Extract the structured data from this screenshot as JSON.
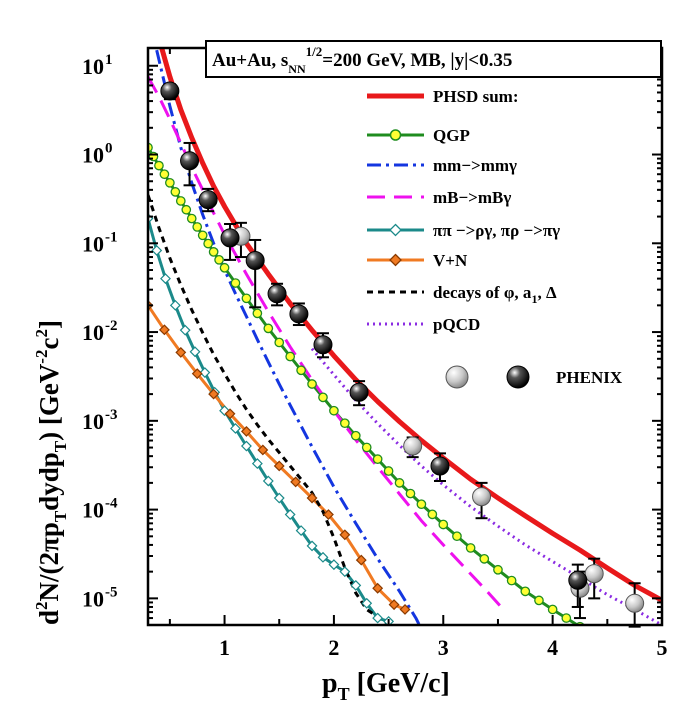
{
  "chart_data": {
    "type": "line",
    "title_box": {
      "system": "Au+Au, s",
      "sub": "NN",
      "sup": "1/2",
      "rest": "=200 GeV, MB, |y|<0.35"
    },
    "xlabel": {
      "main": "p",
      "sub": "T",
      "rest": " [GeV/c]"
    },
    "ylabel_parts": [
      "d",
      "2",
      "N/(2πp",
      "T",
      "dydp",
      "T",
      ")  [GeV",
      "-2",
      "c",
      "2",
      "]"
    ],
    "xlim": [
      0.3,
      5.0
    ],
    "ylim_log10": [
      -5.3,
      1.2
    ],
    "log_y": true,
    "x_ticks": [
      1,
      2,
      3,
      4,
      5
    ],
    "y_ticks": [
      {
        "base": "10",
        "exp": "1"
      },
      {
        "base": "10",
        "exp": "0"
      },
      {
        "base": "10",
        "exp": "-1"
      },
      {
        "base": "10",
        "exp": "-2"
      },
      {
        "base": "10",
        "exp": "-3"
      },
      {
        "base": "10",
        "exp": "-4"
      },
      {
        "base": "10",
        "exp": "-5"
      }
    ],
    "y_tick_values": [
      10,
      1,
      0.1,
      0.01,
      0.001,
      0.0001,
      1e-05
    ],
    "legend_position": "top-right",
    "series": [
      {
        "name": "PHSD sum:",
        "color": "#e8191b",
        "style": "solid",
        "width": 5,
        "marker": "none",
        "x": [
          0.38,
          0.5,
          0.6,
          0.7,
          0.8,
          0.9,
          1.0,
          1.2,
          1.4,
          1.6,
          1.8,
          2.0,
          2.2,
          2.4,
          2.6,
          2.8,
          3.0,
          3.25,
          3.5,
          3.75,
          4.0,
          4.25,
          4.5,
          4.75,
          5.0
        ],
        "y": [
          25,
          7.5,
          3.2,
          1.55,
          0.8,
          0.44,
          0.26,
          0.1,
          0.045,
          0.021,
          0.0105,
          0.0054,
          0.0029,
          0.00165,
          0.00098,
          0.0006,
          0.00038,
          0.00022,
          0.000135,
          8.5e-05,
          5.4e-05,
          3.5e-05,
          2.2e-05,
          1.4e-05,
          9.5e-06
        ]
      },
      {
        "name": "QGP",
        "color": "#1f8c1f",
        "style": "solid",
        "width": 3,
        "marker": "circle",
        "marker_fill": "#ffff33",
        "x": [
          0.3,
          0.4,
          0.5,
          0.6,
          0.7,
          0.8,
          0.9,
          1.0,
          1.2,
          1.4,
          1.6,
          1.8,
          2.0,
          2.2,
          2.4,
          2.6,
          2.8,
          3.0,
          3.25,
          3.5,
          3.75,
          4.0,
          4.25,
          4.5,
          4.75
        ],
        "y": [
          1.2,
          0.75,
          0.48,
          0.3,
          0.19,
          0.123,
          0.08,
          0.053,
          0.024,
          0.011,
          0.0053,
          0.0026,
          0.0013,
          0.00068,
          0.00037,
          0.0002,
          0.000115,
          6.8e-05,
          3.7e-05,
          2.1e-05,
          1.2e-05,
          7.5e-06,
          4.8e-06,
          3.1e-06,
          2.1e-06
        ]
      },
      {
        "name": "mm−>mmγ",
        "color": "#1436e0",
        "style": "dashdot",
        "width": 3,
        "marker": "none",
        "x": [
          0.38,
          0.5,
          0.6,
          0.7,
          0.8,
          0.9,
          1.0,
          1.1,
          1.2,
          1.3,
          1.4,
          1.5,
          1.6,
          1.8,
          2.0,
          2.2,
          2.4,
          2.6,
          2.75,
          2.8
        ],
        "y": [
          15,
          3.5,
          1.2,
          0.48,
          0.21,
          0.1,
          0.05,
          0.027,
          0.015,
          0.0082,
          0.0046,
          0.0026,
          0.0015,
          0.00051,
          0.00018,
          7e-05,
          2.8e-05,
          1.2e-05,
          6e-06,
          4.5e-06
        ]
      },
      {
        "name": "mB−>mBγ",
        "color": "#ee11ee",
        "style": "dash",
        "width": 3,
        "marker": "none",
        "x": [
          0.3,
          0.4,
          0.5,
          0.6,
          0.7,
          0.8,
          0.9,
          1.0,
          1.2,
          1.4,
          1.6,
          1.8,
          2.0,
          2.2,
          2.4,
          2.6,
          2.8,
          3.0,
          3.2,
          3.4,
          3.55
        ],
        "y": [
          7.5,
          4.5,
          2.5,
          1.35,
          0.72,
          0.4,
          0.22,
          0.125,
          0.045,
          0.017,
          0.0068,
          0.0029,
          0.0013,
          0.00061,
          0.0003,
          0.00015,
          7.5e-05,
          4e-05,
          2.2e-05,
          1.2e-05,
          7.5e-06
        ]
      },
      {
        "name": "ππ −>ργ, πρ −>πγ",
        "color": "#1b8a8a",
        "style": "solid",
        "width": 3,
        "marker": "diamond-open",
        "x": [
          0.3,
          0.38,
          0.46,
          0.55,
          0.64,
          0.73,
          0.82,
          0.91,
          1.0,
          1.1,
          1.2,
          1.3,
          1.4,
          1.5,
          1.6,
          1.7,
          1.8,
          1.9,
          2.0,
          2.1,
          2.2,
          2.3,
          2.4,
          2.5
        ],
        "y": [
          0.19,
          0.083,
          0.04,
          0.02,
          0.0105,
          0.006,
          0.0035,
          0.0021,
          0.0013,
          0.00082,
          0.00052,
          0.00033,
          0.00021,
          0.000135,
          8.8e-05,
          5.8e-05,
          3.9e-05,
          2.9e-05,
          2.4e-05,
          2e-05,
          1.4e-05,
          8.8e-06,
          6e-06,
          5.5e-06
        ]
      },
      {
        "name": "V+N",
        "color": "#f07a22",
        "style": "solid",
        "width": 3,
        "marker": "diamond",
        "x": [
          0.3,
          0.45,
          0.6,
          0.75,
          0.9,
          1.05,
          1.2,
          1.35,
          1.5,
          1.65,
          1.8,
          1.95,
          2.1,
          2.25,
          2.4,
          2.55,
          2.65
        ],
        "y": [
          0.02,
          0.0106,
          0.0059,
          0.0034,
          0.002,
          0.0012,
          0.00076,
          0.00047,
          0.00031,
          0.000205,
          0.000135,
          8.8e-05,
          5.2e-05,
          2.7e-05,
          1.3e-05,
          8.5e-06,
          7.5e-06
        ]
      },
      {
        "name": "decays of φ, a",
        "name_sub": "1",
        "name_rest": ", Δ",
        "color": "#000000",
        "style": "shortdash",
        "width": 3,
        "marker": "none",
        "x": [
          0.3,
          0.4,
          0.5,
          0.6,
          0.7,
          0.8,
          0.9,
          1.0,
          1.1,
          1.2,
          1.3,
          1.4,
          1.5,
          1.6,
          1.7,
          1.8,
          1.9,
          2.0,
          2.1,
          2.2,
          2.3,
          2.4,
          2.5
        ],
        "y": [
          0.35,
          0.15,
          0.068,
          0.034,
          0.0178,
          0.0098,
          0.0056,
          0.0034,
          0.0021,
          0.00135,
          0.0009,
          0.00062,
          0.00044,
          0.00031,
          0.00022,
          0.000155,
          9.5e-05,
          4.8e-05,
          2.2e-05,
          1.15e-05,
          7.5e-06,
          6.2e-06,
          5e-06
        ]
      },
      {
        "name": "pQCD",
        "color": "#8a2be2",
        "style": "dot",
        "width": 3,
        "marker": "none",
        "x": [
          1.8,
          2.0,
          2.2,
          2.4,
          2.6,
          2.8,
          3.0,
          3.25,
          3.5,
          3.75,
          4.0,
          4.25,
          4.5,
          4.75,
          5.0
        ],
        "y": [
          0.0065,
          0.0033,
          0.0017,
          0.00093,
          0.00053,
          0.00031,
          0.00019,
          0.000108,
          6.5e-05,
          4e-05,
          2.6e-05,
          1.7e-05,
          1.1e-05,
          7.5e-06,
          5e-06
        ]
      }
    ],
    "phenix": {
      "name": "PHENIX",
      "gray": [
        {
          "x": 1.15,
          "y": 0.12,
          "err_lo": 0.05,
          "err_hi": 0.05
        },
        {
          "x": 2.72,
          "y": 0.00052,
          "err_lo": 0.00013,
          "err_hi": 0.00013
        },
        {
          "x": 3.35,
          "y": 0.00014,
          "err_lo": 6e-05,
          "err_hi": 6e-05
        },
        {
          "x": 4.25,
          "y": 1.3e-05,
          "err_lo": 7e-06,
          "err_hi": 7e-06
        },
        {
          "x": 4.38,
          "y": 1.9e-05,
          "err_lo": 9e-06,
          "err_hi": 9e-06
        },
        {
          "x": 4.75,
          "y": 8.8e-06,
          "err_lo": 4e-06,
          "err_hi": 6e-06
        }
      ],
      "black": [
        {
          "x": 0.5,
          "y": 5.2,
          "err_lo": 1.0,
          "err_hi": 1.0
        },
        {
          "x": 0.68,
          "y": 0.85,
          "err_lo": 0.4,
          "err_hi": 0.5
        },
        {
          "x": 0.85,
          "y": 0.31,
          "err_lo": 0.08,
          "err_hi": 0.1
        },
        {
          "x": 1.05,
          "y": 0.115,
          "err_lo": 0.05,
          "err_hi": 0.05
        },
        {
          "x": 1.28,
          "y": 0.064,
          "err_lo": 0.045,
          "err_hi": 0.045
        },
        {
          "x": 1.48,
          "y": 0.027,
          "err_lo": 0.007,
          "err_hi": 0.008
        },
        {
          "x": 1.68,
          "y": 0.016,
          "err_lo": 0.004,
          "err_hi": 0.005
        },
        {
          "x": 1.9,
          "y": 0.0072,
          "err_lo": 0.002,
          "err_hi": 0.0025
        },
        {
          "x": 2.23,
          "y": 0.0021,
          "err_lo": 0.0006,
          "err_hi": 0.0007
        },
        {
          "x": 2.97,
          "y": 0.00031,
          "err_lo": 0.0001,
          "err_hi": 0.00012
        },
        {
          "x": 4.23,
          "y": 1.6e-05,
          "err_lo": 8e-06,
          "err_hi": 8e-06
        }
      ]
    }
  }
}
